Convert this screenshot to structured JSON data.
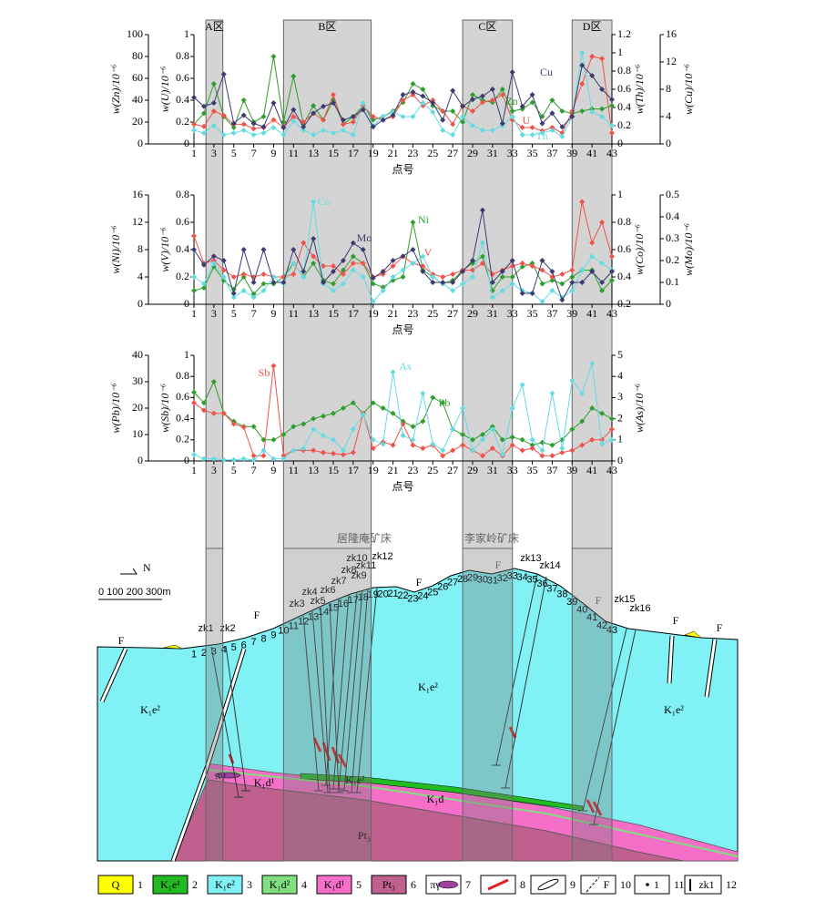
{
  "chart_data": [
    {
      "type": "line",
      "xlabel": "点号",
      "x": [
        1,
        2,
        3,
        4,
        5,
        6,
        7,
        8,
        9,
        10,
        11,
        12,
        13,
        14,
        15,
        16,
        17,
        18,
        19,
        20,
        21,
        22,
        23,
        24,
        25,
        26,
        27,
        28,
        29,
        30,
        31,
        32,
        33,
        34,
        35,
        36,
        37,
        38,
        39,
        40,
        41,
        42,
        43
      ],
      "xlim": [
        1,
        43
      ],
      "xticks": [
        1,
        3,
        5,
        7,
        9,
        11,
        13,
        15,
        17,
        19,
        21,
        23,
        25,
        27,
        29,
        31,
        33,
        35,
        37,
        39,
        41,
        43
      ],
      "ylabel": "w(Zn)/10⁻⁶",
      "ylim": [
        0,
        100
      ],
      "yticks": [
        0,
        20,
        40,
        60,
        80,
        100
      ],
      "y2label": "w(U)/10⁻⁶",
      "y2lim": [
        0,
        1
      ],
      "y2ticks": [
        0,
        0.2,
        0.4,
        0.6,
        0.8,
        1
      ],
      "y3label": "w(Th)/10⁻⁶",
      "y3lim": [
        0,
        1.2
      ],
      "y3ticks": [
        0,
        0.2,
        0.4,
        0.6,
        0.8,
        1,
        1.2
      ],
      "y4label": "w(Cu)/10⁻⁶",
      "y4lim": [
        0,
        16
      ],
      "y4ticks": [
        0,
        4,
        8,
        12,
        16
      ],
      "series": [
        {
          "name": "Zn",
          "color": "#2e9e2e",
          "axis": "y",
          "values": [
            18,
            28,
            55,
            25,
            15,
            40,
            20,
            25,
            80,
            20,
            62,
            18,
            35,
            22,
            40,
            18,
            25,
            35,
            22,
            25,
            30,
            38,
            55,
            50,
            35,
            30,
            30,
            20,
            45,
            40,
            38,
            50,
            30,
            32,
            38,
            25,
            40,
            30,
            28,
            30,
            32,
            32,
            35
          ]
        },
        {
          "name": "U",
          "color": "#f0524a",
          "axis": "y2",
          "values": [
            0.18,
            0.16,
            0.3,
            0.26,
            0.18,
            0.18,
            0.14,
            0.15,
            0.22,
            0.15,
            0.25,
            0.2,
            0.28,
            0.22,
            0.45,
            0.18,
            0.2,
            0.35,
            0.25,
            0.22,
            0.25,
            0.4,
            0.45,
            0.35,
            0.4,
            0.3,
            0.18,
            0.35,
            0.3,
            0.38,
            0.4,
            0.45,
            0.22,
            0.15,
            0.15,
            0.12,
            0.15,
            0.1,
            0.3,
            0.55,
            0.8,
            0.78,
            0.1
          ]
        },
        {
          "name": "Th",
          "color": "#63dbe3",
          "axis": "y3",
          "values": [
            0.15,
            0.12,
            0.2,
            0.1,
            0.12,
            0.15,
            0.1,
            0.12,
            0.18,
            0.1,
            0.25,
            0.15,
            0.1,
            0.15,
            0.12,
            0.15,
            0.1,
            0.45,
            0.2,
            0.3,
            0.35,
            0.3,
            0.3,
            0.45,
            0.35,
            0.15,
            0.1,
            0.3,
            0.2,
            0.15,
            0.15,
            0.2,
            0.3,
            0.1,
            0.1,
            0.12,
            0.15,
            0.08,
            0.3,
            1,
            0.35,
            0.3,
            0.2
          ]
        },
        {
          "name": "Cu",
          "color": "#3b3b70",
          "axis": "y4",
          "values": [
            6.8,
            5.5,
            6,
            10.2,
            3,
            4.2,
            3,
            2.5,
            6,
            2.4,
            5,
            2.5,
            4.5,
            5.5,
            6,
            3.5,
            4,
            5,
            2.5,
            3.5,
            4.2,
            7.2,
            7.6,
            7,
            6,
            3.5,
            7.8,
            5.5,
            6.5,
            7,
            8,
            3,
            10.5,
            5.5,
            7.2,
            3,
            4.5,
            2.5,
            4,
            11.5,
            10,
            8,
            6.5
          ]
        }
      ]
    },
    {
      "type": "line",
      "xlabel": "点号",
      "x": [
        1,
        2,
        3,
        4,
        5,
        6,
        7,
        8,
        9,
        10,
        11,
        12,
        13,
        14,
        15,
        16,
        17,
        18,
        19,
        20,
        21,
        22,
        23,
        24,
        25,
        26,
        27,
        28,
        29,
        30,
        31,
        32,
        33,
        34,
        35,
        36,
        37,
        38,
        39,
        40,
        41,
        42,
        43
      ],
      "xlim": [
        1,
        43
      ],
      "xticks": [
        1,
        3,
        5,
        7,
        9,
        11,
        13,
        15,
        17,
        19,
        21,
        23,
        25,
        27,
        29,
        31,
        33,
        35,
        37,
        39,
        41,
        43
      ],
      "ylabel": "w(Ni)/10⁻⁶",
      "ylim": [
        0,
        16
      ],
      "yticks": [
        0,
        4,
        8,
        12,
        16
      ],
      "y2label": "w(V)/10⁻⁶",
      "y2lim": [
        0,
        0.8
      ],
      "y2ticks": [
        0,
        0.2,
        0.4,
        0.6,
        0.8
      ],
      "y3label": "w(Co)/10⁻⁶",
      "y3lim": [
        0.2,
        1
      ],
      "y3ticks": [
        0.2,
        0.4,
        0.6,
        0.8,
        1
      ],
      "y4label": "w(Mo)/10⁻⁶",
      "y4lim": [
        0,
        0.5
      ],
      "y4ticks": [
        0,
        0.1,
        0.2,
        0.3,
        0.4,
        0.5
      ],
      "series": [
        {
          "name": "Ni",
          "color": "#2e9e2e",
          "axis": "y",
          "values": [
            2,
            2.4,
            5.5,
            3.5,
            2.2,
            4,
            1.5,
            3,
            3,
            4,
            6,
            4,
            6,
            3.5,
            3,
            5,
            7,
            6,
            3,
            2.5,
            3.5,
            4,
            12,
            5,
            4,
            3,
            3.5,
            5,
            6,
            7,
            2,
            4,
            4,
            5.5,
            6,
            3,
            3.5,
            3,
            4,
            5,
            5,
            2,
            3.5
          ]
        },
        {
          "name": "V",
          "color": "#f0524a",
          "axis": "y2",
          "values": [
            0.5,
            0.3,
            0.32,
            0.25,
            0.2,
            0.22,
            0.2,
            0.22,
            0.2,
            0.2,
            0.22,
            0.45,
            0.35,
            0.28,
            0.28,
            0.22,
            0.3,
            0.3,
            0.2,
            0.22,
            0.28,
            0.35,
            0.3,
            0.28,
            0.22,
            0.2,
            0.22,
            0.25,
            0.25,
            0.3,
            0.22,
            0.25,
            0.28,
            0.3,
            0.28,
            0.25,
            0.2,
            0.22,
            0.25,
            0.75,
            0.45,
            0.6,
            0.35
          ]
        },
        {
          "name": "Co",
          "color": "#63dbe3",
          "axis": "y3",
          "values": [
            0.4,
            0.35,
            0.5,
            0.4,
            0.25,
            0.3,
            0.25,
            0.3,
            0.4,
            0.35,
            0.5,
            0.4,
            0.95,
            0.35,
            0.3,
            0.35,
            0.45,
            0.4,
            0.22,
            0.3,
            0.4,
            0.45,
            0.5,
            0.55,
            0.4,
            0.35,
            0.3,
            0.35,
            0.4,
            0.65,
            0.25,
            0.3,
            0.35,
            0.3,
            0.28,
            0.22,
            0.3,
            0.25,
            0.3,
            0.45,
            0.55,
            0.5,
            0.45
          ]
        },
        {
          "name": "Mo",
          "color": "#3b3b70",
          "axis": "y4",
          "values": [
            0.25,
            0.18,
            0.22,
            0.2,
            0.05,
            0.25,
            0.1,
            0.25,
            0.1,
            0.1,
            0.25,
            0.15,
            0.3,
            0.1,
            0.15,
            0.2,
            0.28,
            0.25,
            0.12,
            0.15,
            0.2,
            0.22,
            0.25,
            0.15,
            0.1,
            0.1,
            0.1,
            0.15,
            0.2,
            0.43,
            0.1,
            0.15,
            0.2,
            0.05,
            0.05,
            0.2,
            0.15,
            0.02,
            0.1,
            0.1,
            0.15,
            0.1,
            0.15
          ]
        }
      ]
    },
    {
      "type": "line",
      "xlabel": "点号",
      "x": [
        1,
        2,
        3,
        4,
        5,
        6,
        7,
        8,
        9,
        10,
        11,
        12,
        13,
        14,
        15,
        16,
        17,
        18,
        19,
        20,
        21,
        22,
        23,
        24,
        25,
        26,
        27,
        28,
        29,
        30,
        31,
        32,
        33,
        34,
        35,
        36,
        37,
        38,
        39,
        40,
        41,
        42,
        43
      ],
      "xlim": [
        1,
        43
      ],
      "xticks": [
        1,
        3,
        5,
        7,
        9,
        11,
        13,
        15,
        17,
        19,
        21,
        23,
        25,
        27,
        29,
        31,
        33,
        35,
        37,
        39,
        41,
        43
      ],
      "ylabel": "w(Pb)/10⁻⁶",
      "ylim": [
        0,
        40
      ],
      "yticks": [
        0,
        10,
        20,
        30,
        40
      ],
      "y2label": "w(Sb)/10⁻⁶",
      "y2lim": [
        0,
        1
      ],
      "y2ticks": [
        0,
        0.2,
        0.4,
        0.6,
        0.8,
        1
      ],
      "y3label": "w(As)/10⁻⁶",
      "y3lim": [
        0,
        5
      ],
      "y3ticks": [
        0,
        1,
        2,
        3,
        4,
        5
      ],
      "series": [
        {
          "name": "Pb",
          "color": "#2e9e2e",
          "axis": "y",
          "values": [
            26,
            22,
            30,
            18,
            15,
            13,
            13,
            8,
            8,
            10,
            13,
            14,
            16,
            17,
            18,
            20,
            22,
            18,
            22,
            20,
            18,
            15,
            13,
            15,
            24,
            22,
            12,
            10,
            8,
            10,
            13,
            8,
            9,
            8,
            6,
            7,
            6,
            8,
            12,
            15,
            20,
            18,
            16
          ]
        },
        {
          "name": "Sb",
          "color": "#f0524a",
          "axis": "y2",
          "values": [
            0.55,
            0.48,
            0.45,
            0.45,
            0.35,
            0.32,
            0.05,
            0.05,
            0.9,
            0.05,
            0.1,
            0.1,
            0.1,
            0.08,
            0.07,
            0.06,
            0.08,
            0.45,
            0.12,
            0.18,
            0.15,
            0.35,
            0.15,
            0.12,
            0.15,
            0.05,
            0.1,
            0.15,
            0.1,
            0.05,
            0.12,
            0.05,
            0.15,
            0.1,
            0.12,
            0.05,
            0.05,
            0.08,
            0.1,
            0.15,
            0.2,
            0.2,
            0.3
          ]
        },
        {
          "name": "As",
          "color": "#63dbe3",
          "axis": "y3",
          "values": [
            0.3,
            0.1,
            0.1,
            0.05,
            0.05,
            0.1,
            0.05,
            0.5,
            0.1,
            0.1,
            0.5,
            0.6,
            1.5,
            1.2,
            1,
            0.5,
            1.5,
            2.2,
            1,
            0.8,
            4.2,
            1.2,
            1,
            3.2,
            0.8,
            0.5,
            1.5,
            2.5,
            0.5,
            1,
            1.5,
            0.3,
            2.5,
            3.6,
            1,
            0.5,
            3.2,
            0.6,
            3.8,
            3.2,
            4.6,
            0.8,
            1
          ]
        }
      ]
    }
  ],
  "zones": [
    {
      "label": "A区",
      "start": 2.2,
      "end": 3.9
    },
    {
      "label": "B区",
      "start": 10,
      "end": 18.8
    },
    {
      "label": "C区",
      "start": 28,
      "end": 33
    },
    {
      "label": "D区",
      "start": 39,
      "end": 43
    }
  ],
  "section": {
    "deposits": [
      "居隆庵矿床",
      "李家岭矿床"
    ],
    "stations": [
      1,
      2,
      3,
      4,
      5,
      6,
      7,
      8,
      9,
      10,
      11,
      12,
      13,
      14,
      15,
      16,
      17,
      18,
      19,
      20,
      21,
      22,
      23,
      24,
      25,
      26,
      27,
      28,
      29,
      30,
      31,
      32,
      33,
      34,
      35,
      36,
      37,
      38,
      39,
      40,
      41,
      42,
      43
    ],
    "drillholes": [
      "zk1",
      "zk2",
      "zk3",
      "zk4",
      "zk5",
      "zk6",
      "zk7",
      "zk8",
      "zk9",
      "zk10",
      "zk11",
      "zk12",
      "zk13",
      "zk14",
      "zk15",
      "zk16"
    ],
    "units": [
      "K₁e²",
      "K₁e²",
      "K₁e²",
      "K₁e¹",
      "K₁d¹",
      "K₁d",
      "Pt₃",
      "πγ"
    ],
    "faults": [
      "F",
      "F",
      "F",
      "F",
      "F",
      "F",
      "F"
    ],
    "scale": "0  100  200  300m",
    "north": "N"
  },
  "legend": [
    {
      "symbol": "Q",
      "number": "1"
    },
    {
      "symbol": "K₁e¹",
      "number": "2"
    },
    {
      "symbol": "K₁e²",
      "number": "3"
    },
    {
      "symbol": "K₁d²",
      "number": "4"
    },
    {
      "symbol": "K₁d¹",
      "number": "5"
    },
    {
      "symbol": "Pt₃",
      "number": "6"
    },
    {
      "symbol": "πγ",
      "number": "7"
    },
    {
      "number": "8"
    },
    {
      "number": "9"
    },
    {
      "symbol": "F",
      "number": "10"
    },
    {
      "symbol": "1",
      "number": "11"
    },
    {
      "symbol": "zk1",
      "number": "12"
    }
  ]
}
